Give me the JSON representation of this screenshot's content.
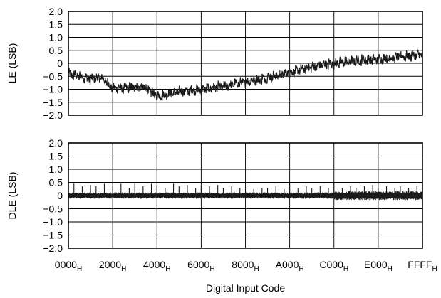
{
  "chart_data": [
    {
      "type": "line",
      "title": "",
      "xlabel": "Digital Input Code",
      "ylabel": "LE (LSB)",
      "xlim": [
        0,
        65535
      ],
      "ylim": [
        -2.0,
        2.0
      ],
      "y_ticks": [
        "2.0",
        "1.5",
        "1.0",
        "0.5",
        "0",
        "−0.5",
        "−1.0",
        "−1.5",
        "−2.0"
      ],
      "grid": true,
      "legend": "none",
      "color": "#1a1a1a",
      "series": [
        {
          "x": [
            0,
            2048,
            4096,
            6144,
            8192,
            10240,
            12288,
            14336,
            16384,
            18432,
            20480,
            22528,
            24576,
            26624,
            28672,
            30720,
            32768,
            34816,
            36864,
            38912,
            40960,
            43008,
            45056,
            47104,
            49152,
            51200,
            53248,
            55296,
            57344,
            59392,
            61440,
            63488,
            65535
          ],
          "values": [
            -0.4,
            -0.5,
            -0.6,
            -0.55,
            -0.95,
            -0.95,
            -0.9,
            -0.95,
            -1.25,
            -1.2,
            -1.1,
            -1.05,
            -1.0,
            -0.95,
            -0.9,
            -0.8,
            -0.7,
            -0.65,
            -0.55,
            -0.45,
            -0.35,
            -0.25,
            -0.15,
            -0.05,
            0.0,
            0.05,
            0.1,
            0.15,
            0.15,
            0.2,
            0.25,
            0.3,
            0.35
          ]
        }
      ]
    },
    {
      "type": "line",
      "title": "",
      "xlabel": "Digital Input Code",
      "ylabel": "DLE (LSB)",
      "xlim": [
        0,
        65535
      ],
      "ylim": [
        -2.0,
        2.0
      ],
      "y_ticks": [
        "2.0",
        "1.5",
        "1.0",
        "0.5",
        "0",
        "−0.5",
        "−1.0",
        "−1.5",
        "−2.0"
      ],
      "grid": true,
      "legend": "none",
      "color": "#1a1a1a",
      "band": {
        "upper": 0.12,
        "lower": -0.12
      },
      "spikes": {
        "x": [
          1024,
          2560,
          4096,
          5120,
          6656,
          8192,
          9728,
          11264,
          12288,
          13824,
          15360,
          16384,
          17920,
          19456,
          20480,
          22016,
          23552,
          24576,
          26112,
          27648,
          28672,
          30208,
          31744,
          32768,
          34304,
          35840,
          36864,
          38400,
          39936,
          40960,
          42496,
          44032,
          45056,
          46592,
          48128,
          49152,
          50688,
          52224,
          53248,
          54784,
          56320,
          57344,
          58880,
          60416,
          61440,
          62976,
          64512
        ],
        "values": [
          0.45,
          0.35,
          0.4,
          0.35,
          0.45,
          0.35,
          0.45,
          0.3,
          0.45,
          0.35,
          0.45,
          0.4,
          0.3,
          0.45,
          0.35,
          0.4,
          0.3,
          0.4,
          0.35,
          0.4,
          0.3,
          0.35,
          0.3,
          0.35,
          0.25,
          0.3,
          0.3,
          0.35,
          0.25,
          0.45,
          0.3,
          0.35,
          0.3,
          0.35,
          0.3,
          0.45,
          0.3,
          0.35,
          0.3,
          0.35,
          0.4,
          0.3,
          0.35,
          0.3,
          0.35,
          0.3,
          0.35
        ]
      }
    }
  ],
  "x_ticks": [
    {
      "value": 0,
      "base": "0000",
      "sub": "H"
    },
    {
      "value": 8192,
      "base": "2000",
      "sub": "H"
    },
    {
      "value": 16384,
      "base": "4000",
      "sub": "H"
    },
    {
      "value": 24576,
      "base": "6000",
      "sub": "H"
    },
    {
      "value": 32768,
      "base": "8000",
      "sub": "H"
    },
    {
      "value": 40960,
      "base": "A000",
      "sub": "H"
    },
    {
      "value": 49152,
      "base": "C000",
      "sub": "H"
    },
    {
      "value": 57344,
      "base": "E000",
      "sub": "H"
    },
    {
      "value": 65535,
      "base": "FFFF",
      "sub": "H"
    }
  ],
  "xlabel": "Digital Input Code"
}
